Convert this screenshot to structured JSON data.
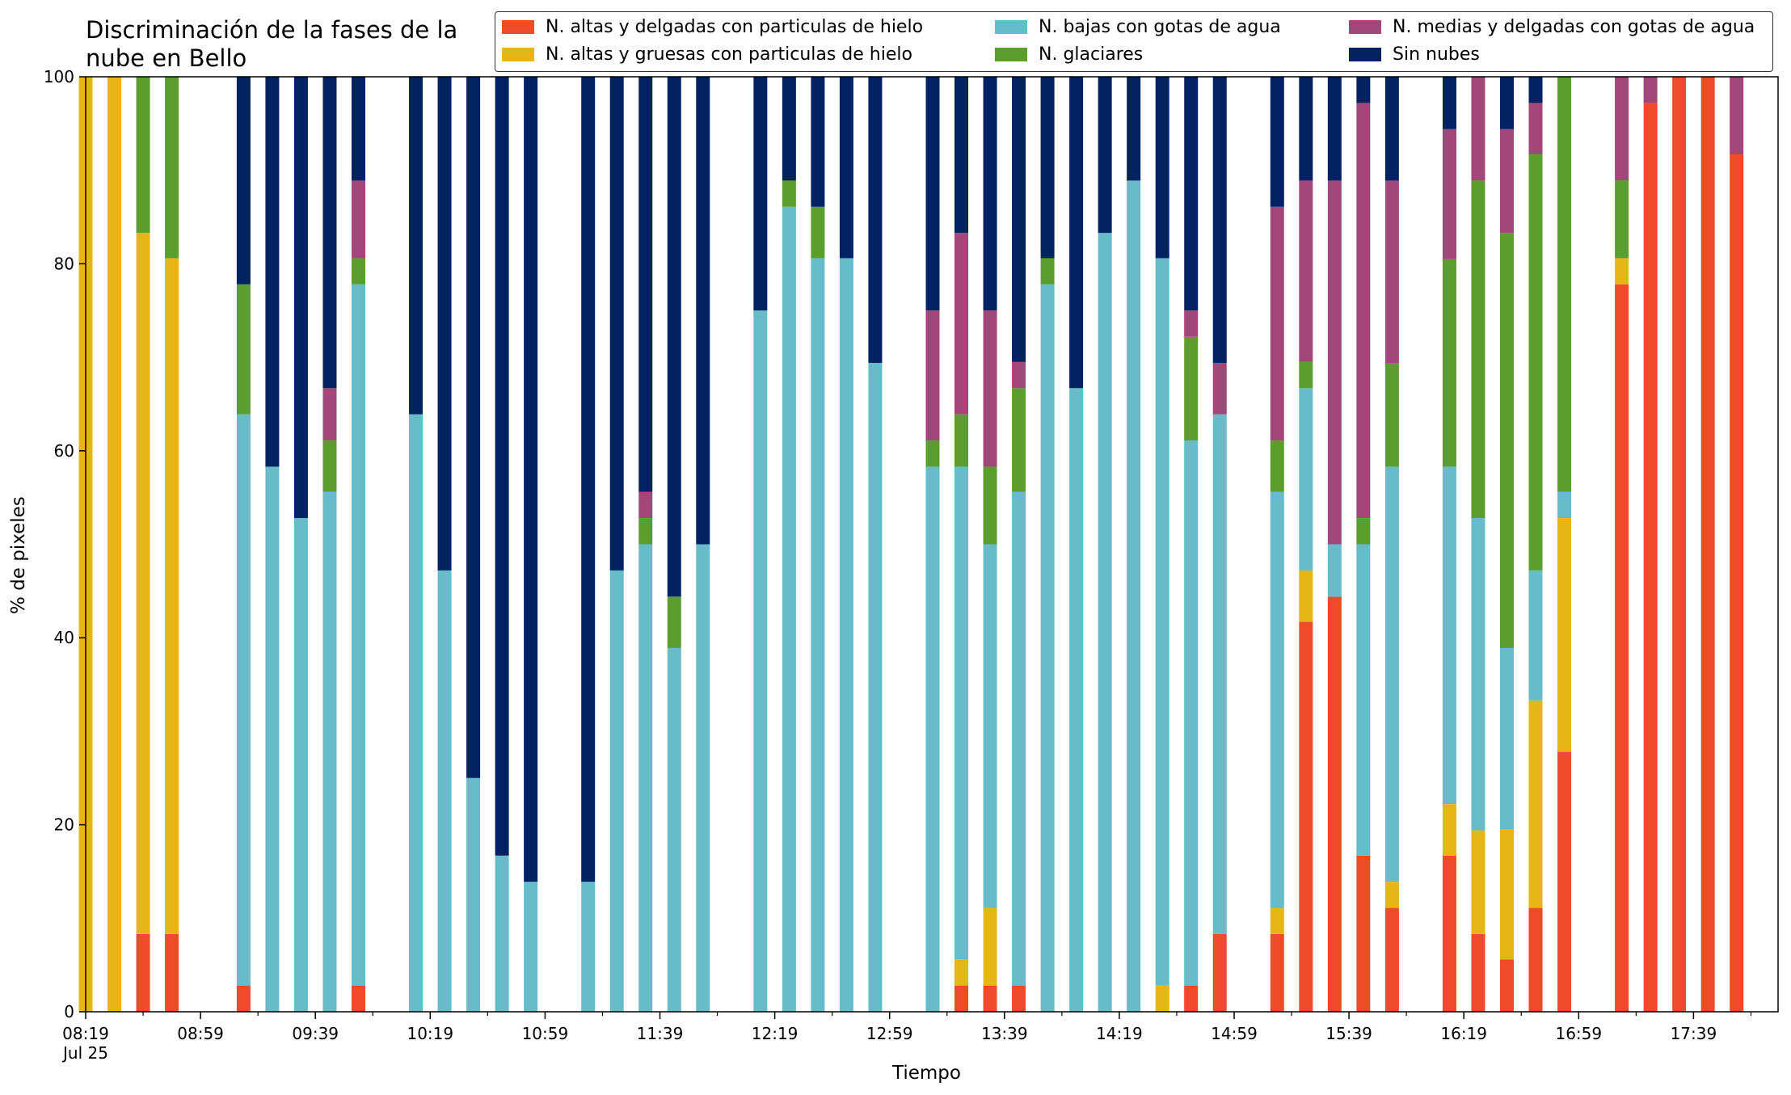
{
  "chart_data": {
    "type": "bar",
    "stacked": true,
    "title": "Discriminación de la fases de la\nnube en Bello",
    "xlabel": "Tiempo",
    "ylabel": "% de pixeles",
    "ylim": [
      0,
      100
    ],
    "yticks": [
      0,
      20,
      40,
      60,
      80,
      100
    ],
    "x_tick_labels": [
      "08:19\nJul 25",
      "08:59",
      "09:39",
      "10:19",
      "10:59",
      "11:39",
      "12:19",
      "12:59",
      "13:39",
      "14:19",
      "14:59",
      "15:39",
      "16:19",
      "16:59",
      "17:39"
    ],
    "grid": false,
    "legend_position": "top-right",
    "series": [
      {
        "name": "N. altas y delgadas con particulas de hielo",
        "color": "#ee4b2b"
      },
      {
        "name": "N. altas y gruesas con particulas de hielo",
        "color": "#e6b617"
      },
      {
        "name": "N. bajas con gotas de agua",
        "color": "#66bdc9"
      },
      {
        "name": "N. glaciares",
        "color": "#5c9e2e"
      },
      {
        "name": "N. medias y delgadas con gotas de agua",
        "color": "#a3467a"
      },
      {
        "name": "Sin nubes",
        "color": "#032263"
      }
    ],
    "legend_order": [
      0,
      2,
      4,
      1,
      3,
      5
    ],
    "bars": [
      {
        "time": "08:19",
        "values": [
          0,
          100,
          0,
          0,
          0,
          0
        ]
      },
      {
        "time": "08:29",
        "values": [
          0,
          100,
          0,
          0,
          0,
          0
        ]
      },
      {
        "time": "08:39",
        "values": [
          8.3,
          75,
          0,
          16.7,
          0,
          0
        ]
      },
      {
        "time": "08:49",
        "values": [
          8.3,
          72.3,
          0,
          19.4,
          0,
          0
        ]
      },
      {
        "time": "09:14",
        "values": [
          2.8,
          0,
          61.1,
          13.9,
          0,
          22.2
        ]
      },
      {
        "time": "09:24",
        "values": [
          0,
          0,
          58.3,
          0,
          0,
          41.7
        ]
      },
      {
        "time": "09:34",
        "values": [
          0,
          0,
          52.8,
          0,
          0,
          47.2
        ]
      },
      {
        "time": "09:44",
        "values": [
          0,
          0,
          55.6,
          5.5,
          5.6,
          33.3
        ]
      },
      {
        "time": "09:54",
        "values": [
          2.8,
          0,
          75,
          2.8,
          8.3,
          11.1
        ]
      },
      {
        "time": "10:14",
        "values": [
          0,
          0,
          63.9,
          0,
          0,
          36.1
        ]
      },
      {
        "time": "10:24",
        "values": [
          0,
          0,
          47.2,
          0,
          0,
          52.8
        ]
      },
      {
        "time": "10:34",
        "values": [
          0,
          0,
          25,
          0,
          0,
          75
        ]
      },
      {
        "time": "10:44",
        "values": [
          0,
          0,
          16.7,
          0,
          0,
          83.3
        ]
      },
      {
        "time": "10:54",
        "values": [
          0,
          0,
          13.9,
          0,
          0,
          86.1
        ]
      },
      {
        "time": "11:14",
        "values": [
          0,
          0,
          13.9,
          0,
          0,
          86.1
        ]
      },
      {
        "time": "11:24",
        "values": [
          0,
          0,
          47.2,
          0,
          0,
          52.8
        ]
      },
      {
        "time": "11:34",
        "values": [
          0,
          0,
          50,
          2.8,
          2.8,
          44.4
        ]
      },
      {
        "time": "11:44",
        "values": [
          0,
          0,
          38.9,
          5.5,
          0,
          55.6
        ]
      },
      {
        "time": "11:54",
        "values": [
          0,
          0,
          50,
          0,
          0,
          50
        ]
      },
      {
        "time": "12:14",
        "values": [
          0,
          0,
          75,
          0,
          0,
          25
        ]
      },
      {
        "time": "12:24",
        "values": [
          0,
          0,
          86.1,
          2.8,
          0,
          11.1
        ]
      },
      {
        "time": "12:34",
        "values": [
          0,
          0,
          80.6,
          5.5,
          0,
          13.9
        ]
      },
      {
        "time": "12:44",
        "values": [
          0,
          0,
          80.6,
          0,
          0,
          19.4
        ]
      },
      {
        "time": "12:54",
        "values": [
          0,
          0,
          69.4,
          0,
          0,
          30.6
        ]
      },
      {
        "time": "13:14",
        "values": [
          0,
          0,
          58.3,
          2.8,
          13.9,
          25
        ]
      },
      {
        "time": "13:24",
        "values": [
          2.8,
          2.8,
          52.7,
          5.6,
          19.4,
          16.7
        ]
      },
      {
        "time": "13:34",
        "values": [
          2.8,
          8.3,
          38.9,
          8.3,
          16.7,
          25
        ]
      },
      {
        "time": "13:44",
        "values": [
          2.8,
          0,
          52.8,
          11.1,
          2.8,
          30.5
        ]
      },
      {
        "time": "13:54",
        "values": [
          0,
          0,
          77.8,
          2.8,
          0,
          19.4
        ]
      },
      {
        "time": "14:04",
        "values": [
          0,
          0,
          66.7,
          0,
          0,
          33.3
        ]
      },
      {
        "time": "14:14",
        "values": [
          0,
          0,
          83.3,
          0,
          0,
          16.7
        ]
      },
      {
        "time": "14:24",
        "values": [
          0,
          0,
          88.9,
          0,
          0,
          11.1
        ]
      },
      {
        "time": "14:34",
        "values": [
          0,
          2.8,
          77.8,
          0,
          0,
          19.4
        ]
      },
      {
        "time": "14:44",
        "values": [
          2.8,
          0,
          58.3,
          11.1,
          2.8,
          25
        ]
      },
      {
        "time": "14:54",
        "values": [
          8.3,
          0,
          55.6,
          0,
          5.5,
          30.6
        ]
      },
      {
        "time": "15:14",
        "values": [
          8.3,
          2.8,
          44.5,
          5.5,
          25,
          13.9
        ]
      },
      {
        "time": "15:24",
        "values": [
          41.7,
          5.5,
          19.5,
          2.8,
          19.4,
          11.1
        ]
      },
      {
        "time": "15:34",
        "values": [
          44.4,
          0,
          5.6,
          0,
          38.9,
          11.1
        ]
      },
      {
        "time": "15:44",
        "values": [
          16.7,
          0,
          33.3,
          2.8,
          44.4,
          2.8
        ]
      },
      {
        "time": "15:54",
        "values": [
          11.1,
          2.8,
          44.4,
          11.1,
          19.5,
          11.1
        ]
      },
      {
        "time": "16:14",
        "values": [
          16.7,
          5.5,
          36.1,
          22.2,
          13.9,
          5.6
        ]
      },
      {
        "time": "16:24",
        "values": [
          8.3,
          11.1,
          33.4,
          36.1,
          11.1,
          0
        ]
      },
      {
        "time": "16:34",
        "values": [
          5.6,
          13.9,
          19.4,
          44.4,
          11.1,
          5.6
        ]
      },
      {
        "time": "16:44",
        "values": [
          11.1,
          22.2,
          13.9,
          44.5,
          5.5,
          2.8
        ]
      },
      {
        "time": "16:54",
        "values": [
          27.8,
          25,
          2.8,
          44.4,
          0,
          0
        ]
      },
      {
        "time": "17:14",
        "values": [
          77.8,
          2.8,
          0,
          8.3,
          11.1,
          0
        ]
      },
      {
        "time": "17:24",
        "values": [
          97.2,
          0,
          0,
          0,
          2.8,
          0
        ]
      },
      {
        "time": "17:34",
        "values": [
          100,
          0,
          0,
          0,
          0,
          0
        ]
      },
      {
        "time": "17:44",
        "values": [
          100,
          0,
          0,
          0,
          0,
          0
        ]
      },
      {
        "time": "17:54",
        "values": [
          91.7,
          0,
          0,
          0,
          8.3,
          0
        ]
      }
    ]
  }
}
